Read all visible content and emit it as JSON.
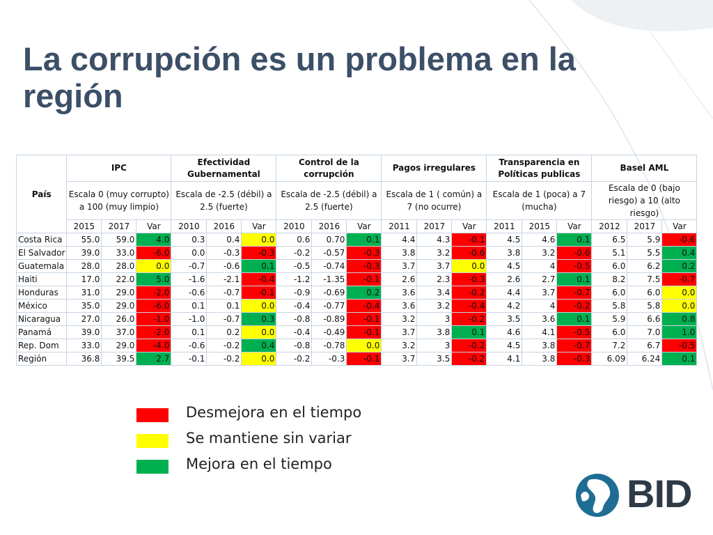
{
  "title": "La corrupción es un problema en la región",
  "colors": {
    "red": "#ff0000",
    "yellow": "#ffff00",
    "green": "#00b050",
    "title": "#3c4f67"
  },
  "table": {
    "pais_header": "País",
    "groups": [
      {
        "name": "IPC",
        "scale": "Escala 0 (muy corrupto) a 100 (muy limpio)",
        "years": [
          "2015",
          "2017",
          "Var"
        ]
      },
      {
        "name": "Efectividad Gubernamental",
        "scale": "Escala de -2.5 (débil) a 2.5 (fuerte)",
        "years": [
          "2010",
          "2016",
          "Var"
        ]
      },
      {
        "name": "Control de la corrupción",
        "scale": "Escala de -2.5 (débil) a 2.5 (fuerte)",
        "years": [
          "2010",
          "2016",
          "Var"
        ]
      },
      {
        "name": "Pagos irregulares",
        "scale": "Escala de 1 ( común) a 7 (no ocurre)",
        "years": [
          "2011",
          "2017",
          "Var"
        ]
      },
      {
        "name": "Transparencia en Políticas publicas",
        "scale": "Escala de 1 (poca) a 7 (mucha)",
        "years": [
          "2011",
          "2015",
          "Var"
        ]
      },
      {
        "name": "Basel AML",
        "scale": "Escala de 0 (bajo riesgo) a 10 (alto riesgo)",
        "years": [
          "2012",
          "2017",
          "Var"
        ]
      }
    ],
    "rows": [
      {
        "country": "Costa Rica",
        "cells": [
          [
            "55.0",
            "59.0",
            "4.0",
            "green"
          ],
          [
            "0.3",
            "0.4",
            "0.0",
            "yellow"
          ],
          [
            "0.6",
            "0.70",
            "0.1",
            "green"
          ],
          [
            "4.4",
            "4.3",
            "-0.1",
            "red"
          ],
          [
            "4.5",
            "4.6",
            "0.1",
            "green"
          ],
          [
            "6.5",
            "5.9",
            "-0.6",
            "red"
          ]
        ]
      },
      {
        "country": "El Salvador",
        "cells": [
          [
            "39.0",
            "33.0",
            "-6.0",
            "red"
          ],
          [
            "0.0",
            "-0.3",
            "-0.3",
            "red"
          ],
          [
            "-0.2",
            "-0.57",
            "-0.3",
            "red"
          ],
          [
            "3.8",
            "3.2",
            "-0.6",
            "red"
          ],
          [
            "3.8",
            "3.2",
            "-0.6",
            "red"
          ],
          [
            "5.1",
            "5.5",
            "0.4",
            "green"
          ]
        ]
      },
      {
        "country": "Guatemala",
        "cells": [
          [
            "28.0",
            "28.0",
            "0.0",
            "yellow"
          ],
          [
            "-0.7",
            "-0.6",
            "0.1",
            "green"
          ],
          [
            "-0.5",
            "-0.74",
            "-0.3",
            "red"
          ],
          [
            "3.7",
            "3.7",
            "0.0",
            "yellow"
          ],
          [
            "4.5",
            "4",
            "-0.5",
            "red"
          ],
          [
            "6.0",
            "6.2",
            "0.2",
            "green"
          ]
        ]
      },
      {
        "country": "Haiti",
        "cells": [
          [
            "17.0",
            "22.0",
            "5.0",
            "green"
          ],
          [
            "-1.6",
            "-2.1",
            "-0.4",
            "red"
          ],
          [
            "-1.2",
            "-1.35",
            "-0.1",
            "red"
          ],
          [
            "2.6",
            "2.3",
            "-0.3",
            "red"
          ],
          [
            "2.6",
            "2.7",
            "0.1",
            "green"
          ],
          [
            "8.2",
            "7.5",
            "-0.7",
            "red"
          ]
        ]
      },
      {
        "country": "Honduras",
        "cells": [
          [
            "31.0",
            "29.0",
            "-2.0",
            "red"
          ],
          [
            "-0.6",
            "-0.7",
            "-0.1",
            "red"
          ],
          [
            "-0.9",
            "-0.69",
            "0.2",
            "green"
          ],
          [
            "3.6",
            "3.4",
            "-0.2",
            "red"
          ],
          [
            "4.4",
            "3.7",
            "-0.7",
            "red"
          ],
          [
            "6.0",
            "6.0",
            "0.0",
            "yellow"
          ]
        ]
      },
      {
        "country": "México",
        "cells": [
          [
            "35.0",
            "29.0",
            "-6.0",
            "red"
          ],
          [
            "0.1",
            "0.1",
            "0.0",
            "yellow"
          ],
          [
            "-0.4",
            "-0.77",
            "-0.4",
            "red"
          ],
          [
            "3.6",
            "3.2",
            "-0.4",
            "red"
          ],
          [
            "4.2",
            "4",
            "-0.2",
            "red"
          ],
          [
            "5.8",
            "5.8",
            "0.0",
            "yellow"
          ]
        ]
      },
      {
        "country": "Nicaragua",
        "cells": [
          [
            "27.0",
            "26.0",
            "-1.0",
            "red"
          ],
          [
            "-1.0",
            "-0.7",
            "0.3",
            "green"
          ],
          [
            "-0.8",
            "-0.89",
            "-0.1",
            "red"
          ],
          [
            "3.2",
            "3",
            "-0.2",
            "red"
          ],
          [
            "3.5",
            "3.6",
            "0.1",
            "green"
          ],
          [
            "5.9",
            "6.6",
            "0.8",
            "green"
          ]
        ]
      },
      {
        "country": "Panamá",
        "cells": [
          [
            "39.0",
            "37.0",
            "-2.0",
            "red"
          ],
          [
            "0.1",
            "0.2",
            "0.0",
            "yellow"
          ],
          [
            "-0.4",
            "-0.49",
            "-0.1",
            "red"
          ],
          [
            "3.7",
            "3.8",
            "0.1",
            "green"
          ],
          [
            "4.6",
            "4.1",
            "-0.5",
            "red"
          ],
          [
            "6.0",
            "7.0",
            "1.0",
            "green"
          ]
        ]
      },
      {
        "country": "Rep. Dom",
        "cells": [
          [
            "33.0",
            "29.0",
            "-4.0",
            "red"
          ],
          [
            "-0.6",
            "-0.2",
            "0.4",
            "green"
          ],
          [
            "-0.8",
            "-0.78",
            "0.0",
            "yellow"
          ],
          [
            "3.2",
            "3",
            "-0.2",
            "red"
          ],
          [
            "4.5",
            "3.8",
            "-0.7",
            "red"
          ],
          [
            "7.2",
            "6.7",
            "-0.5",
            "red"
          ]
        ]
      },
      {
        "country": "Región",
        "cells": [
          [
            "36.8",
            "39.5",
            "2.7",
            "green"
          ],
          [
            "-0.1",
            "-0.2",
            "0.0",
            "yellow"
          ],
          [
            "-0.2",
            "-0.3",
            "-0.1",
            "red"
          ],
          [
            "3.7",
            "3.5",
            "-0.2",
            "red"
          ],
          [
            "4.1",
            "3.8",
            "-0.3",
            "red"
          ],
          [
            "6.09",
            "6.24",
            "0.1",
            "green"
          ]
        ]
      }
    ]
  },
  "legend": [
    {
      "label": "Desmejora en el tiempo",
      "color": "red"
    },
    {
      "label": "Se mantiene sin variar",
      "color": "yellow"
    },
    {
      "label": "Mejora en el tiempo",
      "color": "green"
    }
  ],
  "logo": {
    "text": "BID"
  }
}
